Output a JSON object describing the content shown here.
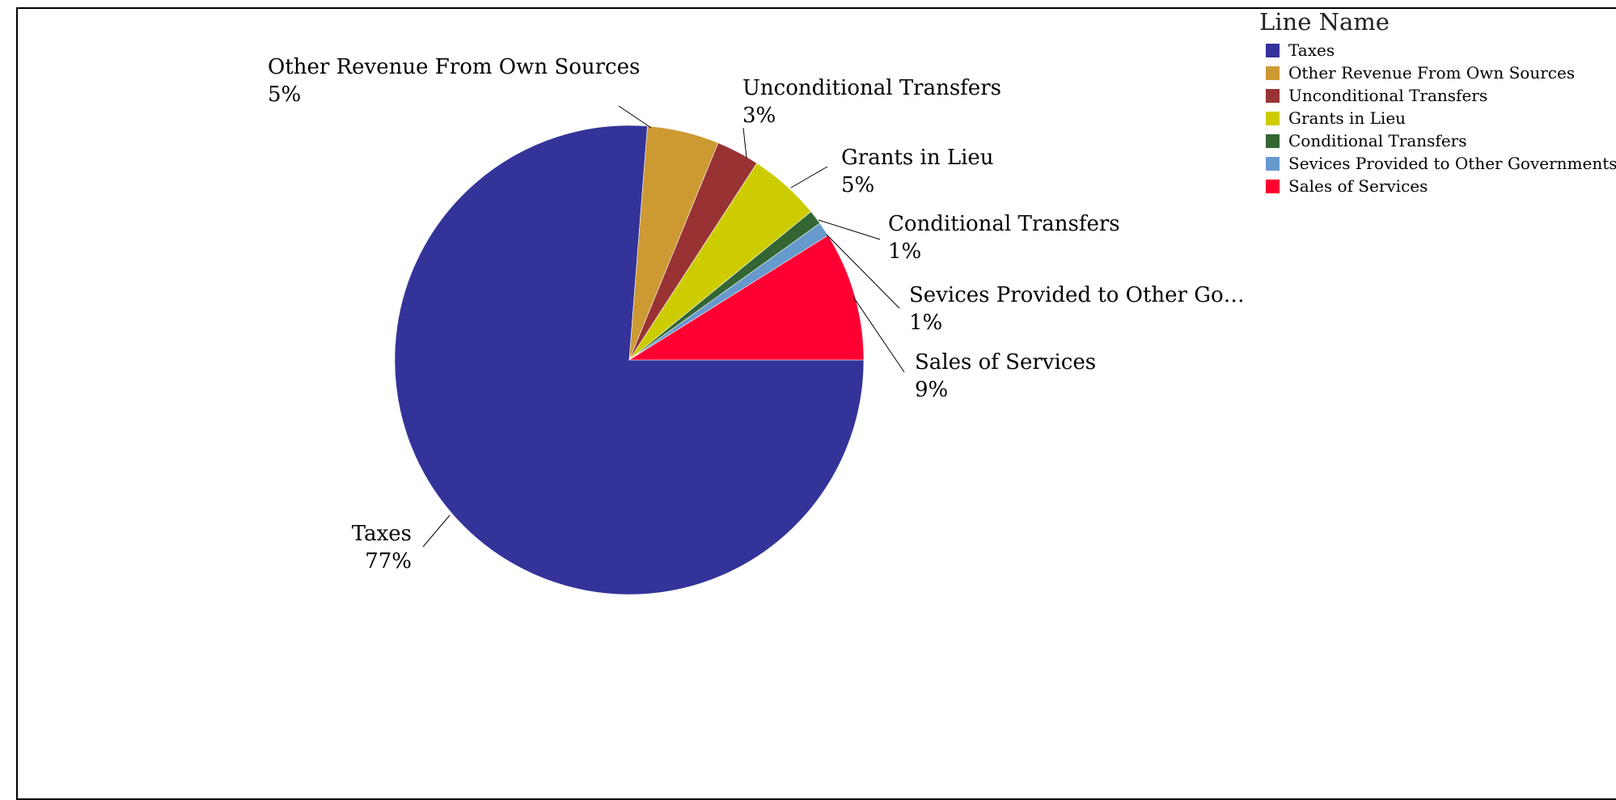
{
  "chart_data": {
    "type": "pie",
    "legend_title": "Line Name",
    "legend_position": "top-right",
    "slices": [
      {
        "name": "Taxes",
        "value": 77,
        "label": "Taxes",
        "pct": "77%",
        "color": "#333399"
      },
      {
        "name": "Other Revenue From Own Sources",
        "value": 5,
        "label": "Other Revenue From Own Sources",
        "pct": "5%",
        "color": "#cc9933"
      },
      {
        "name": "Unconditional Transfers",
        "value": 3,
        "label": "Unconditional Transfers",
        "pct": "3%",
        "color": "#993333"
      },
      {
        "name": "Grants in Lieu",
        "value": 5,
        "label": "Grants in Lieu",
        "pct": "5%",
        "color": "#cccc00"
      },
      {
        "name": "Conditional Transfers",
        "value": 1,
        "label": "Conditional Transfers",
        "pct": "1%",
        "color": "#336633"
      },
      {
        "name": "Sevices Provided to Other Governments",
        "value": 1,
        "label": "Sevices Provided to Other Go…",
        "pct": "1%",
        "color": "#6699cc"
      },
      {
        "name": "Sales of Services",
        "value": 9,
        "label": "Sales of Services",
        "pct": "9%",
        "color": "#ff0033"
      }
    ]
  }
}
